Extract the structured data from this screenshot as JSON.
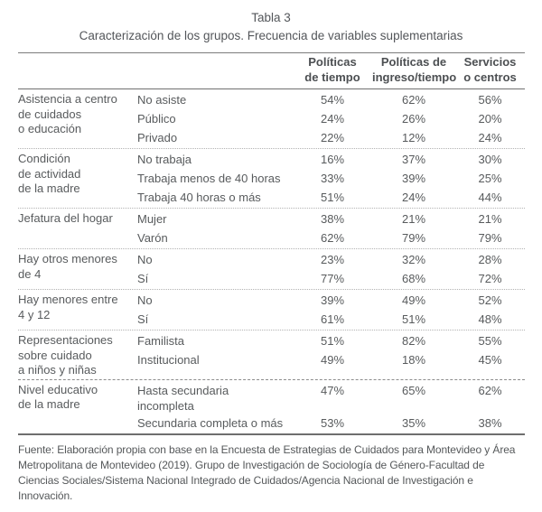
{
  "title": "Tabla 3",
  "subtitle": "Caracterización de los grupos. Frecuencia de variables suplementarias",
  "columns": [
    {
      "line1": "Políticas",
      "line2": "de tiempo"
    },
    {
      "line1": "Políticas de",
      "line2": "ingreso/tiempo"
    },
    {
      "line1": "Servicios",
      "line2": "o centros"
    }
  ],
  "sections": [
    {
      "label_lines": [
        "Asistencia a centro",
        "de cuidados",
        "o educación"
      ],
      "rows": [
        {
          "category": "No asiste",
          "values": [
            "54%",
            "62%",
            "56%"
          ]
        },
        {
          "category": "Público",
          "values": [
            "24%",
            "26%",
            "20%"
          ]
        },
        {
          "category": "Privado",
          "values": [
            "22%",
            "12%",
            "24%"
          ]
        }
      ]
    },
    {
      "label_lines": [
        "Condición",
        "de actividad",
        "de la madre"
      ],
      "rows": [
        {
          "category": "No trabaja",
          "values": [
            "16%",
            "37%",
            "30%"
          ]
        },
        {
          "category": "Trabaja menos de 40 horas",
          "values": [
            "33%",
            "39%",
            "25%"
          ]
        },
        {
          "category": "Trabaja 40 horas o más",
          "values": [
            "51%",
            "24%",
            "44%"
          ]
        }
      ]
    },
    {
      "label_lines": [
        "Jefatura del hogar"
      ],
      "rows": [
        {
          "category": "Mujer",
          "values": [
            "38%",
            "21%",
            "21%"
          ]
        },
        {
          "category": "Varón",
          "values": [
            "62%",
            "79%",
            "79%"
          ]
        }
      ]
    },
    {
      "label_lines": [
        "Hay otros menores",
        "de 4"
      ],
      "rows": [
        {
          "category": "No",
          "values": [
            "23%",
            "32%",
            "28%"
          ]
        },
        {
          "category": "Sí",
          "values": [
            "77%",
            "68%",
            "72%"
          ]
        }
      ]
    },
    {
      "label_lines": [
        "Hay menores entre",
        "4 y 12"
      ],
      "rows": [
        {
          "category": "No",
          "values": [
            "39%",
            "49%",
            "52%"
          ]
        },
        {
          "category": "Sí",
          "values": [
            "61%",
            "51%",
            "48%"
          ]
        }
      ]
    },
    {
      "label_lines": [
        "Representaciones",
        "sobre cuidado",
        "a niños y niñas"
      ],
      "rows": [
        {
          "category": "Familista",
          "values": [
            "51%",
            "82%",
            "55%"
          ]
        },
        {
          "category": "Institucional",
          "values": [
            "49%",
            "18%",
            "45%"
          ]
        }
      ]
    },
    {
      "label_lines": [
        "Nivel educativo",
        "de la madre"
      ],
      "rows": [
        {
          "category": "Hasta secundaria",
          "category_line2": "incompleta",
          "values": [
            "47%",
            "65%",
            "62%"
          ]
        },
        {
          "category": "Secundaria completa o más",
          "values": [
            "53%",
            "35%",
            "38%"
          ]
        }
      ]
    }
  ],
  "source": "Fuente: Elaboración propia con base en la Encuesta de Estrategias de Cuidados para Montevideo y Área Metropolitana de Montevideo (2019). Grupo de Investigación de Sociología de Género-Facultad de Ciencias Sociales/Sistema Nacional Integrado de Cuidados/Agencia Nacional de Investigación e Innovación.",
  "colors": {
    "text": "#585b5d",
    "heading": "#4c4f52",
    "rule": "#7c7c7c",
    "dotted_rule": "#b3b3b3"
  }
}
